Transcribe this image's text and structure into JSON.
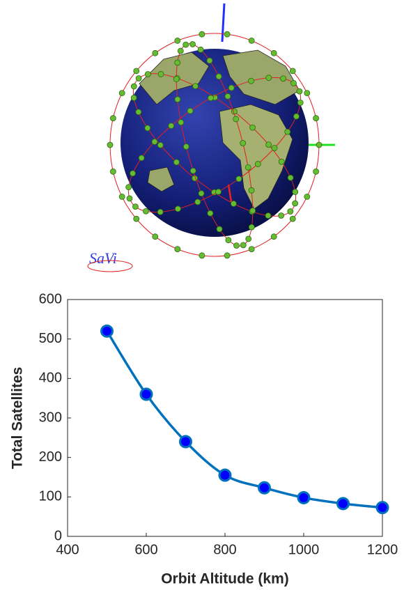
{
  "logo_text": "SaVi",
  "chart_data": {
    "type": "line",
    "x_label": "Orbit Altitude (km)",
    "y_label": "Total Satellites",
    "x": [
      500,
      600,
      700,
      800,
      900,
      1000,
      1100,
      1200
    ],
    "series": [
      {
        "name": "Total Satellites",
        "color": "#0072bd",
        "marker_color": "#0000ff",
        "values": [
          520,
          360,
          240,
          155,
          123,
          98,
          83,
          73
        ]
      }
    ],
    "xlim": [
      400,
      1200
    ],
    "xticks": [
      400,
      600,
      800,
      1000,
      1200
    ],
    "ylim": [
      0,
      600
    ],
    "yticks": [
      0,
      100,
      200,
      300,
      400,
      500,
      600
    ]
  }
}
